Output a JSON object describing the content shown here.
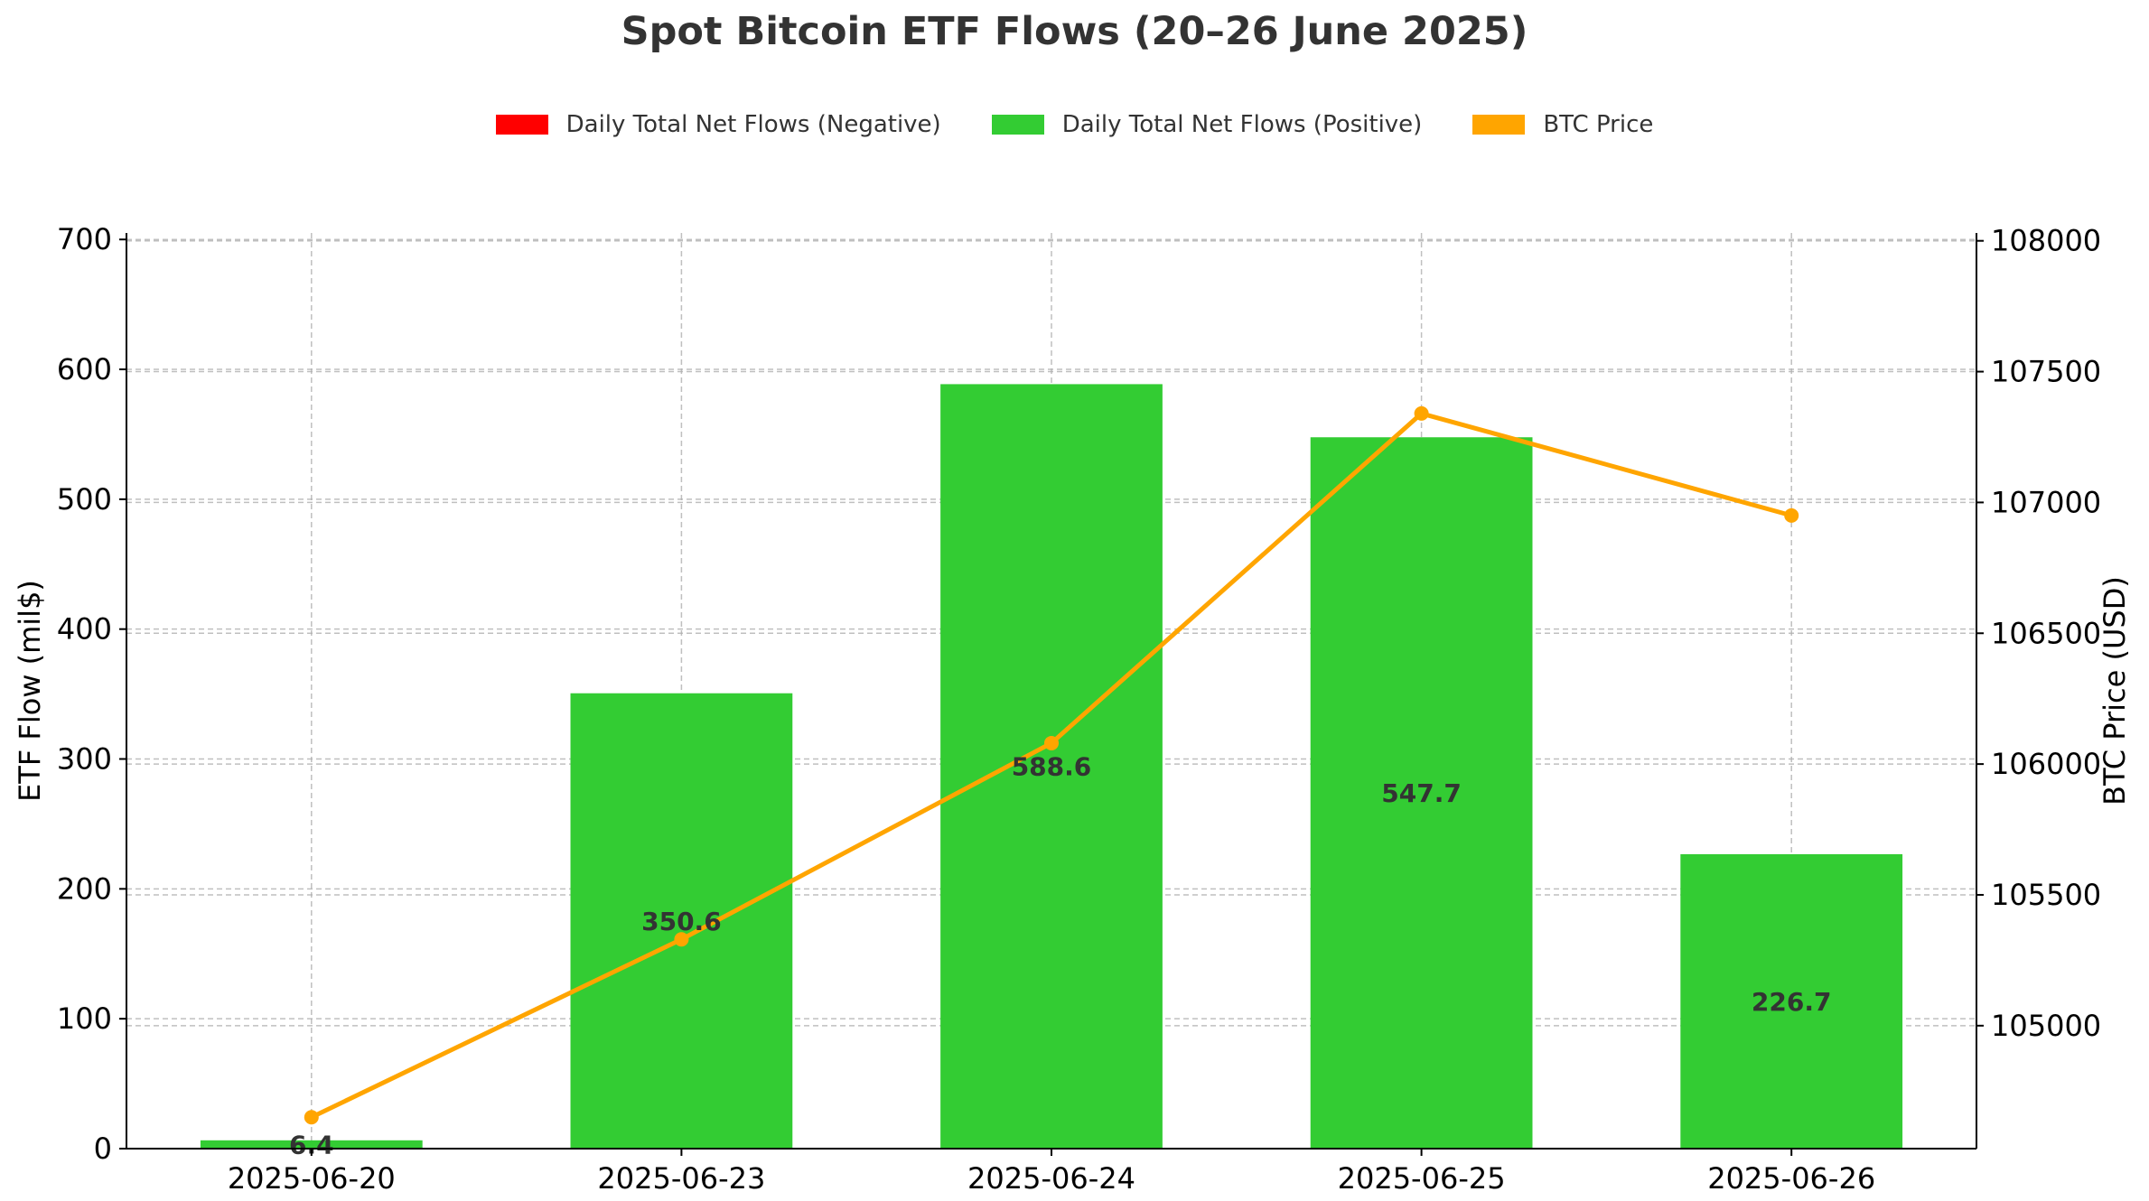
{
  "chart_data": {
    "type": "bar",
    "title": "Spot Bitcoin ETF Flows (20–26 June 2025)",
    "categories": [
      "2025-06-20",
      "2025-06-23",
      "2025-06-24",
      "2025-06-25",
      "2025-06-26"
    ],
    "series": [
      {
        "name": "Daily Total Net Flows (Positive)",
        "type": "bar",
        "axis": "left",
        "color": "#33cc33",
        "values": [
          6.4,
          350.6,
          588.6,
          547.7,
          226.7
        ],
        "labels": [
          "6.4",
          "350.6",
          "588.6",
          "547.7",
          "226.7"
        ]
      },
      {
        "name": "BTC Price",
        "type": "line",
        "axis": "right",
        "color": "#ffa500",
        "values": [
          104650,
          105330,
          106080,
          107340,
          106950
        ]
      }
    ],
    "legend": [
      {
        "label": "Daily Total Net Flows (Negative)",
        "color": "#ff0000"
      },
      {
        "label": "Daily Total Net Flows (Positive)",
        "color": "#33cc33"
      },
      {
        "label": "BTC Price",
        "color": "#ffa500"
      }
    ],
    "legend_position": "top-center",
    "ylabel": "ETF Flow (mil$)",
    "ylabel_right": "BTC Price (USD)",
    "ylim": [
      0,
      705
    ],
    "ylim_right": [
      104530,
      108030
    ],
    "yticks": [
      0,
      100,
      200,
      300,
      400,
      500,
      600,
      700
    ],
    "yticks_right": [
      105000,
      105500,
      106000,
      106500,
      107000,
      107500,
      108000
    ],
    "grid": true
  }
}
